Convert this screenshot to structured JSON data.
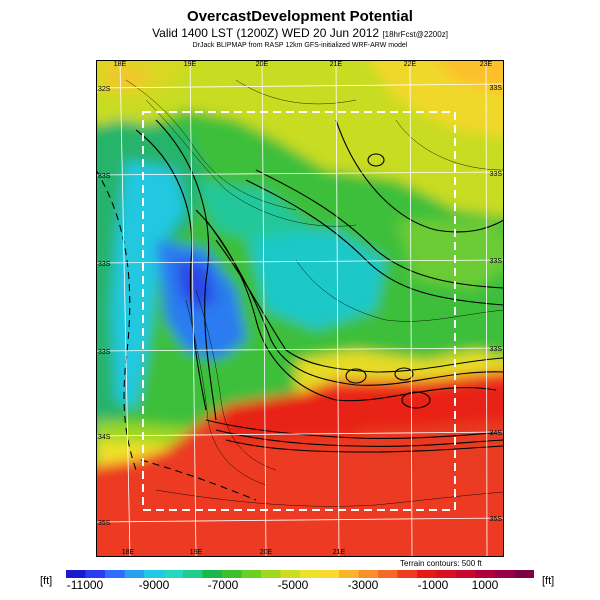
{
  "header": {
    "title": "OvercastDevelopment Potential",
    "valid": "Valid 1400 LST (1200Z) WED 20 Jun 2012",
    "forecast_tag": "[18hrFcst@2200z]",
    "credit": "DrJack BLIPMAP from RASP 12km GFS-initialized WRF-ARW model"
  },
  "map": {
    "lon_labels_top": [
      "18E",
      "19E",
      "20E",
      "21E",
      "22E",
      "23E"
    ],
    "lon_labels_bottom": [
      "18E",
      "19E",
      "20E",
      "21E"
    ],
    "lat_labels_right": [
      "33S",
      "33S",
      "33S",
      "33S",
      "34S",
      "35S"
    ],
    "lat_labels_left": [
      "32S",
      "33S",
      "33S",
      "33S",
      "34S",
      "35S"
    ],
    "terrain_note": "Terrain contours: 500 ft"
  },
  "legend": {
    "unit": "[ft]",
    "tick_labels": [
      "-11000",
      "-9000",
      "-7000",
      "-5000",
      "-3000",
      "-1000",
      "1000"
    ],
    "colors": [
      "#1a1acd",
      "#2a3cf0",
      "#2f6cff",
      "#27a0f0",
      "#1ec8e6",
      "#24d8c0",
      "#1fcc8a",
      "#19b84e",
      "#3cc030",
      "#6ccf26",
      "#a0d820",
      "#ccdc24",
      "#ece22a",
      "#fcd82a",
      "#fcb428",
      "#f8902a",
      "#f46a26",
      "#ee3c20",
      "#e81818",
      "#d81020",
      "#c80830",
      "#b00040",
      "#980048",
      "#7a0048"
    ]
  }
}
